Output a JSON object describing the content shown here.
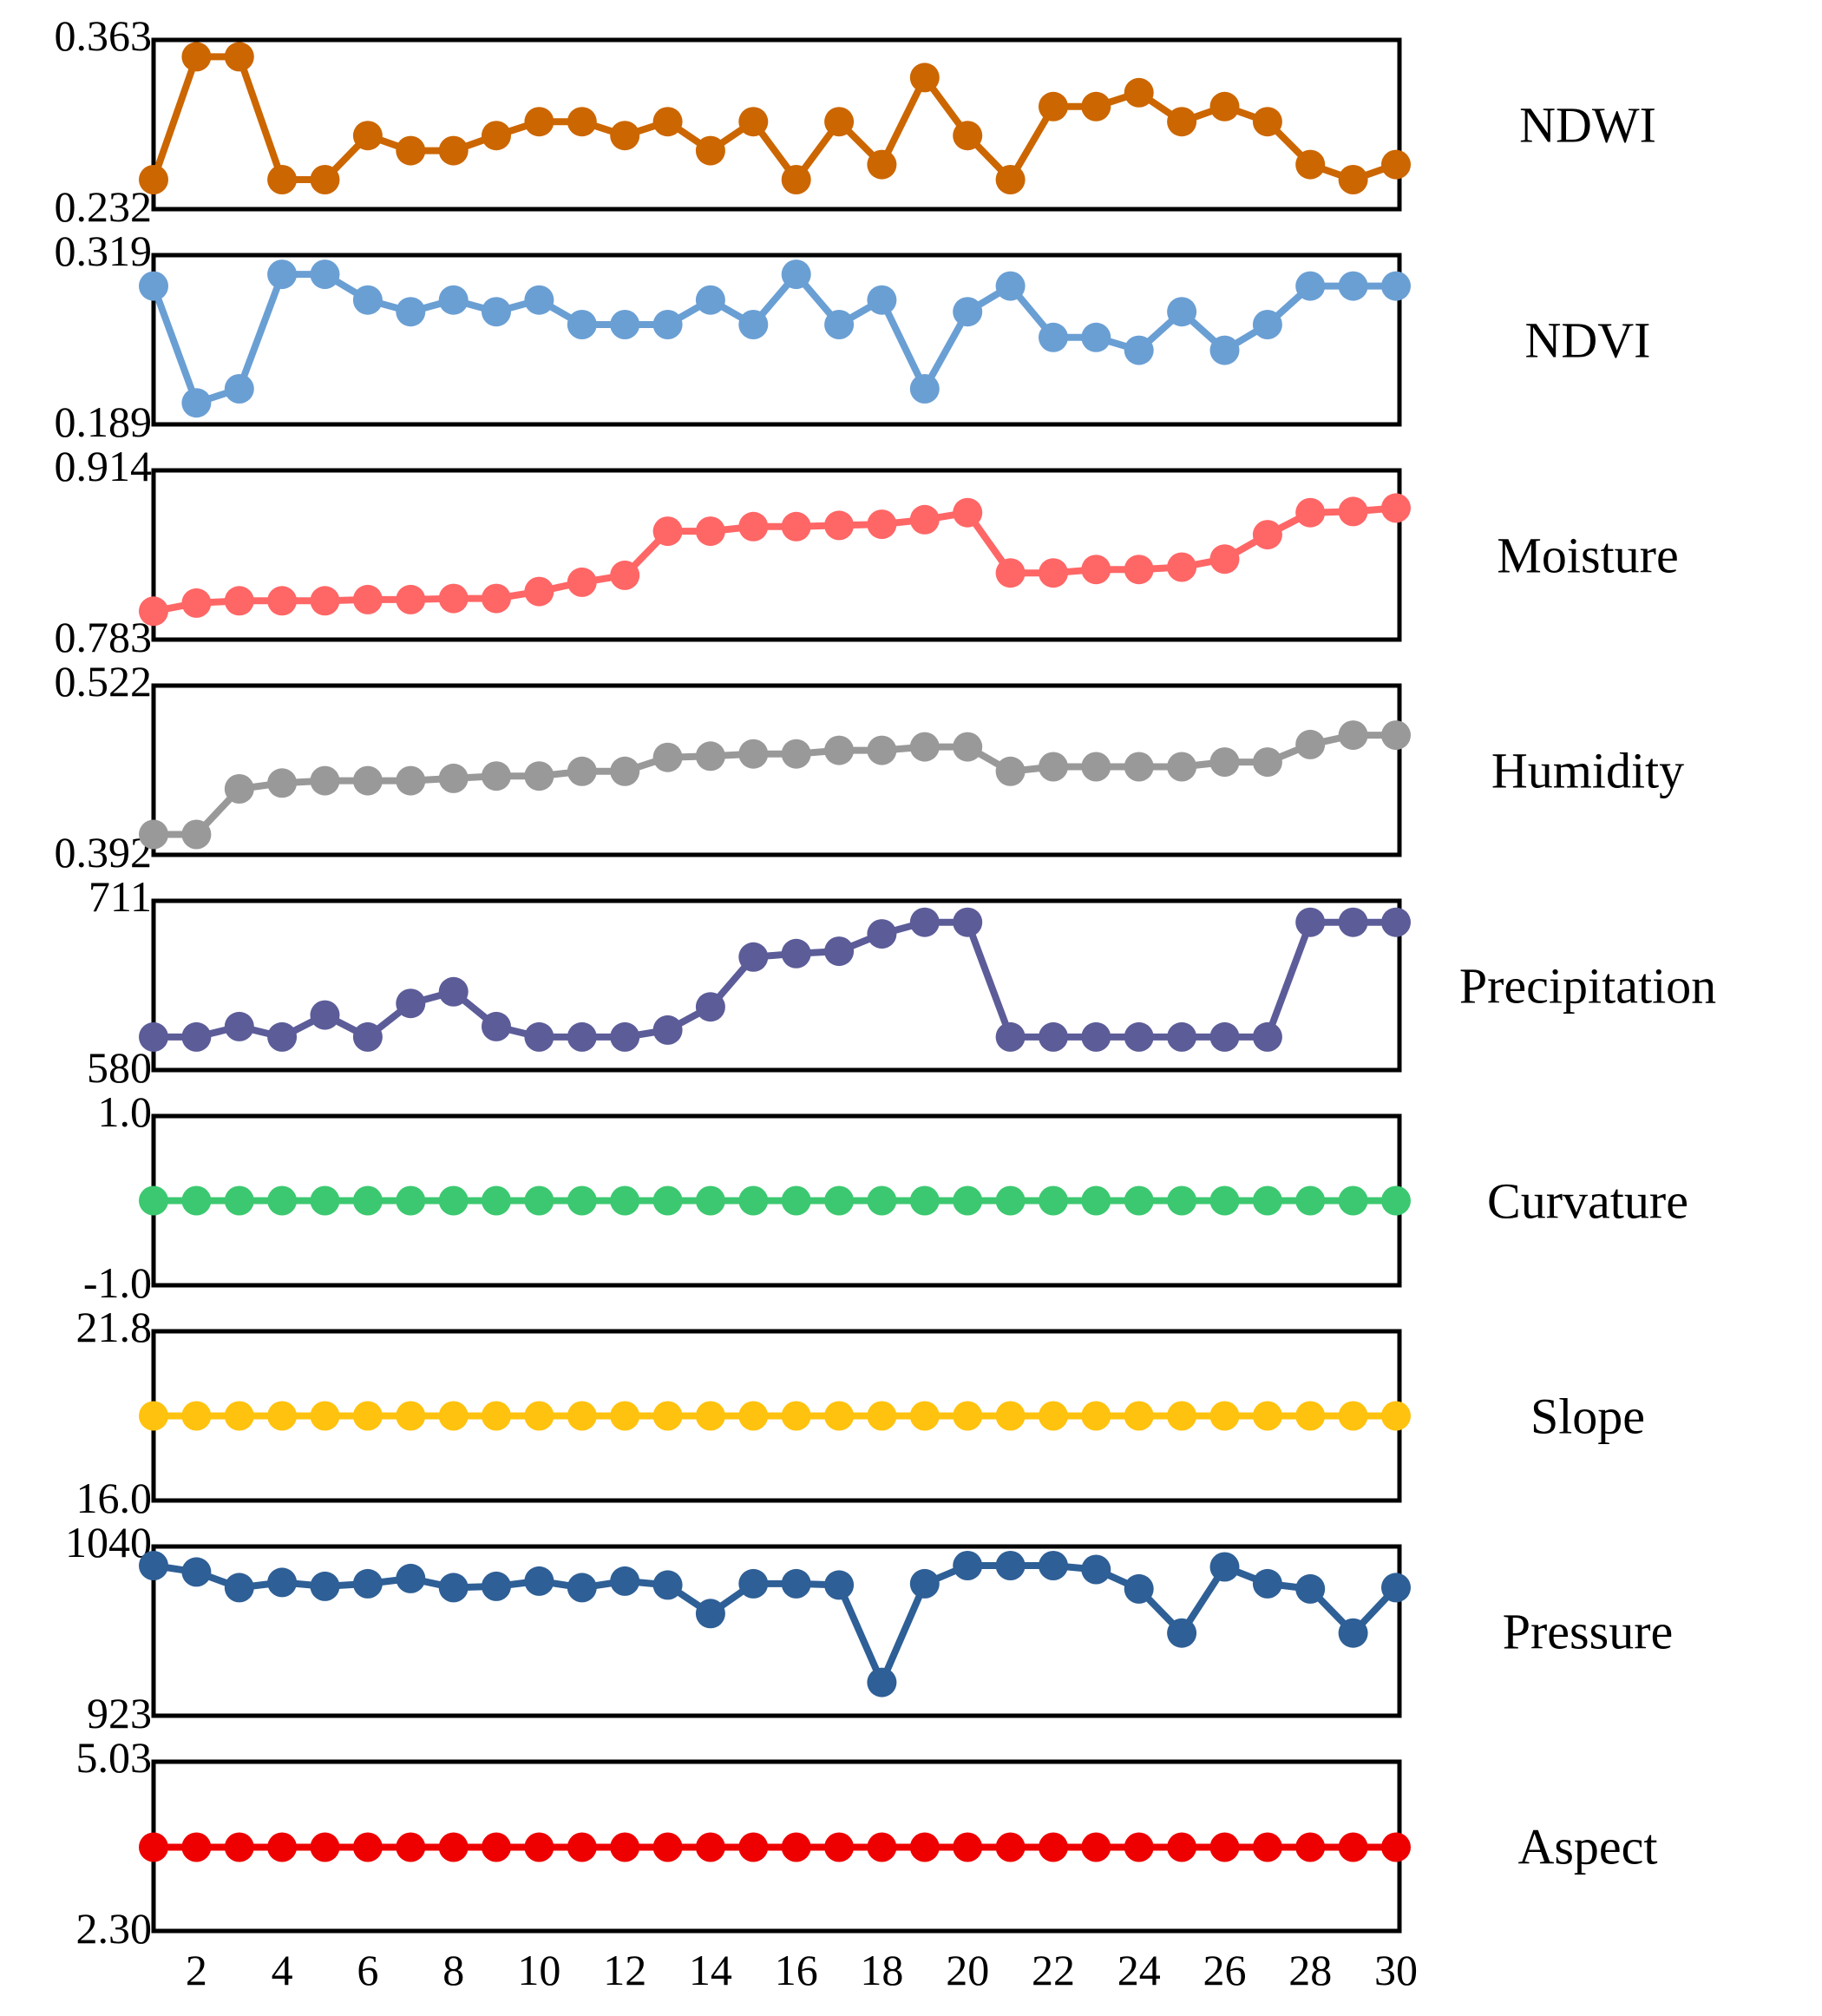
{
  "chart_data": {
    "type": "line",
    "x": [
      1,
      2,
      3,
      4,
      5,
      6,
      7,
      8,
      9,
      10,
      11,
      12,
      13,
      14,
      15,
      16,
      17,
      18,
      19,
      20,
      21,
      22,
      23,
      24,
      25,
      26,
      27,
      28,
      29,
      30
    ],
    "xticks": [
      "2",
      "4",
      "6",
      "8",
      "10",
      "12",
      "14",
      "16",
      "18",
      "20",
      "22",
      "24",
      "26",
      "28",
      "30"
    ],
    "panels": [
      {
        "name": "NDWI",
        "color": "#CC6600",
        "ymin_label": "0.232",
        "ymax_label": "0.363",
        "ylim": [
          0.232,
          0.363
        ],
        "values": [
          0.25,
          0.356,
          0.356,
          0.25,
          0.25,
          0.288,
          0.275,
          0.275,
          0.288,
          0.3,
          0.3,
          0.288,
          0.3,
          0.275,
          0.3,
          0.25,
          0.3,
          0.263,
          0.338,
          0.288,
          0.25,
          0.313,
          0.313,
          0.325,
          0.3,
          0.313,
          0.3,
          0.263,
          0.25,
          0.263
        ]
      },
      {
        "name": "NDVI",
        "color": "#6A9FD4",
        "ymin_label": "0.189",
        "ymax_label": "0.319",
        "ylim": [
          0.189,
          0.319
        ],
        "values": [
          0.3,
          0.2,
          0.212,
          0.31,
          0.31,
          0.288,
          0.278,
          0.288,
          0.278,
          0.288,
          0.267,
          0.267,
          0.267,
          0.288,
          0.267,
          0.31,
          0.267,
          0.288,
          0.212,
          0.278,
          0.3,
          0.256,
          0.256,
          0.245,
          0.278,
          0.245,
          0.267,
          0.3,
          0.3,
          0.3
        ]
      },
      {
        "name": "Moisture",
        "color": "#FF6666",
        "ymin_label": "0.783",
        "ymax_label": "0.914",
        "ylim": [
          0.783,
          0.914
        ],
        "values": [
          0.8,
          0.807,
          0.809,
          0.809,
          0.809,
          0.81,
          0.81,
          0.811,
          0.811,
          0.817,
          0.825,
          0.831,
          0.869,
          0.869,
          0.873,
          0.873,
          0.874,
          0.875,
          0.879,
          0.885,
          0.833,
          0.833,
          0.836,
          0.836,
          0.838,
          0.845,
          0.866,
          0.885,
          0.886,
          0.889
        ]
      },
      {
        "name": "Humidity",
        "color": "#999999",
        "ymin_label": "0.392",
        "ymax_label": "0.522",
        "ylim": [
          0.392,
          0.522
        ],
        "values": [
          0.402,
          0.402,
          0.441,
          0.446,
          0.448,
          0.448,
          0.448,
          0.45,
          0.452,
          0.452,
          0.456,
          0.456,
          0.468,
          0.469,
          0.471,
          0.471,
          0.474,
          0.474,
          0.477,
          0.477,
          0.456,
          0.46,
          0.46,
          0.46,
          0.46,
          0.464,
          0.464,
          0.479,
          0.487,
          0.487
        ]
      },
      {
        "name": "Precipitation",
        "color": "#5C5C99",
        "ymin_label": "580",
        "ymax_label": "711",
        "ylim": [
          580,
          711
        ],
        "values": [
          601,
          601,
          610,
          601,
          620,
          601,
          630,
          640,
          610,
          601,
          601,
          601,
          607,
          627,
          670,
          673,
          675,
          690,
          700,
          700,
          601,
          601,
          601,
          601,
          601,
          601,
          601,
          700,
          700,
          700
        ]
      },
      {
        "name": "Curvature",
        "color": "#3CC870",
        "ymin_label": "-1.0",
        "ymax_label": "1.0",
        "ylim": [
          -1.0,
          1.0
        ],
        "values": [
          0,
          0,
          0,
          0,
          0,
          0,
          0,
          0,
          0,
          0,
          0,
          0,
          0,
          0,
          0,
          0,
          0,
          0,
          0,
          0,
          0,
          0,
          0,
          0,
          0,
          0,
          0,
          0,
          0,
          0
        ]
      },
      {
        "name": "Slope",
        "color": "#FFC20E",
        "ymin_label": "16.0",
        "ymax_label": "21.8",
        "ylim": [
          16.0,
          21.8
        ],
        "values": [
          18.9,
          18.9,
          18.9,
          18.9,
          18.9,
          18.9,
          18.9,
          18.9,
          18.9,
          18.9,
          18.9,
          18.9,
          18.9,
          18.9,
          18.9,
          18.9,
          18.9,
          18.9,
          18.9,
          18.9,
          18.9,
          18.9,
          18.9,
          18.9,
          18.9,
          18.9,
          18.9,
          18.9,
          18.9,
          18.9
        ]
      },
      {
        "name": "Pressure",
        "color": "#2E5F96",
        "ymin_label": "923",
        "ymax_label": "1040",
        "ylim": [
          923,
          1040
        ],
        "values": [
          1032,
          1027,
          1015,
          1019,
          1016,
          1018,
          1022,
          1015,
          1016,
          1020,
          1015,
          1020,
          1017,
          995,
          1018,
          1018,
          1017,
          942,
          1018,
          1032,
          1032,
          1032,
          1029,
          1014,
          980,
          1031,
          1018,
          1014,
          980,
          1015
        ]
      },
      {
        "name": "Aspect",
        "color": "#EE0000",
        "ymin_label": "2.30",
        "ymax_label": "5.03",
        "ylim": [
          2.3,
          5.03
        ],
        "values": [
          3.65,
          3.65,
          3.65,
          3.65,
          3.65,
          3.65,
          3.65,
          3.65,
          3.65,
          3.65,
          3.65,
          3.65,
          3.65,
          3.65,
          3.65,
          3.65,
          3.65,
          3.65,
          3.65,
          3.65,
          3.65,
          3.65,
          3.65,
          3.65,
          3.65,
          3.65,
          3.65,
          3.65,
          3.65,
          3.65
        ]
      }
    ]
  }
}
